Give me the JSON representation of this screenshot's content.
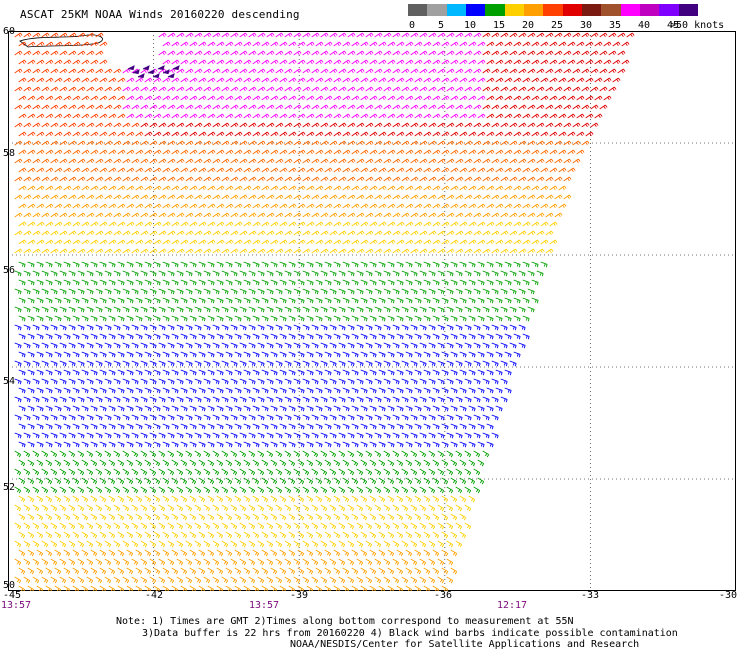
{
  "title": "ASCAT 25KM NOAA Winds 20160220 descending",
  "legend": {
    "ticks": [
      "0",
      "5",
      "10",
      "15",
      "20",
      "25",
      "30",
      "35",
      "40",
      "45"
    ],
    "unit": ">50 knots",
    "colors": [
      "#606060",
      "#a0a0a0",
      "#00b8ff",
      "#0000ff",
      "#00a000",
      "#ffd000",
      "#ffa000",
      "#ff4000",
      "#e00000",
      "#7a1a10",
      "#a0522d",
      "#ff00ff",
      "#c000c0",
      "#8000ff",
      "#400080"
    ]
  },
  "latitude_labels": [
    "60",
    "58",
    "56",
    "54",
    "52",
    "50"
  ],
  "longitude_labels": [
    "-45",
    "-42",
    "-39",
    "-36",
    "-33",
    "-30"
  ],
  "time_labels": [
    "13:57",
    "13:57",
    "12:17"
  ],
  "notes": {
    "line1": "Note: 1) Times are GMT 2)Times along bottom correspond to measurement at 55N",
    "line2": "3)Data buffer is 22 hrs from 20160220 4) Black wind barbs indicate possible contamination",
    "line3": "NOAA/NESDIS/Center for Satellite Applications and Research"
  },
  "map_data": {
    "lat_range": [
      50,
      60
    ],
    "lon_range": [
      -45,
      -30
    ],
    "grid": "dotted",
    "wind_bands": [
      {
        "lat_from": 58.5,
        "lat_to": 60,
        "speed_kt": 40,
        "color": "#ff00ff",
        "label": "magenta core"
      },
      {
        "lat_from": 57.5,
        "lat_to": 60,
        "speed_kt": 35,
        "color": "#e00000"
      },
      {
        "lat_from": 56.5,
        "lat_to": 57.5,
        "speed_kt": 28,
        "color": "#ffa000"
      },
      {
        "lat_from": 55.8,
        "lat_to": 56.5,
        "speed_kt": 23,
        "color": "#ffd000"
      },
      {
        "lat_from": 54.7,
        "lat_to": 55.8,
        "speed_kt": 18,
        "color": "#00a000"
      },
      {
        "lat_from": 52.5,
        "lat_to": 54.7,
        "speed_kt": 14,
        "color": "#0000ff"
      },
      {
        "lat_from": 51.7,
        "lat_to": 52.5,
        "speed_kt": 18,
        "color": "#00a000"
      },
      {
        "lat_from": 50,
        "lat_to": 51.7,
        "speed_kt": 22,
        "color": "#ffd000"
      }
    ]
  }
}
